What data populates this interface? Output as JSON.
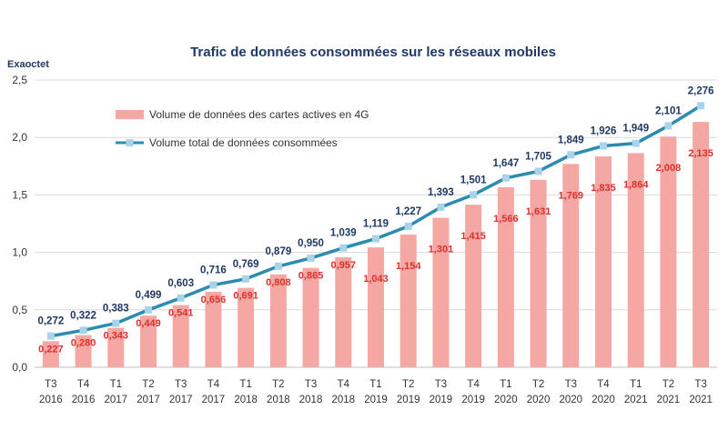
{
  "chart_data": {
    "type": "bar",
    "title": "Trafic de données consommées sur les réseaux mobiles",
    "ylabel": "Exaoctet",
    "ylim": [
      0,
      2.5
    ],
    "yticks": [
      "0,0",
      "0,5",
      "1,0",
      "1,5",
      "2,0",
      "2,5"
    ],
    "grid": true,
    "legend_position": "top-left",
    "categories": [
      [
        "T3",
        "2016"
      ],
      [
        "T4",
        "2016"
      ],
      [
        "T1",
        "2017"
      ],
      [
        "T2",
        "2017"
      ],
      [
        "T3",
        "2017"
      ],
      [
        "T4",
        "2017"
      ],
      [
        "T1",
        "2018"
      ],
      [
        "T2",
        "2018"
      ],
      [
        "T3",
        "2018"
      ],
      [
        "T4",
        "2018"
      ],
      [
        "T1",
        "2019"
      ],
      [
        "T2",
        "2019"
      ],
      [
        "T3",
        "2019"
      ],
      [
        "T4",
        "2019"
      ],
      [
        "T1",
        "2020"
      ],
      [
        "T2",
        "2020"
      ],
      [
        "T3",
        "2020"
      ],
      [
        "T4",
        "2020"
      ],
      [
        "T1",
        "2021"
      ],
      [
        "T2",
        "2021"
      ],
      [
        "T3",
        "2021"
      ]
    ],
    "series": [
      {
        "name": "Volume de données des cartes actives en 4G",
        "type": "bar",
        "color": "#f4a7a3",
        "label_color": "#d9302b",
        "values": [
          0.227,
          0.28,
          0.343,
          0.449,
          0.541,
          0.656,
          0.691,
          0.808,
          0.865,
          0.957,
          1.043,
          1.154,
          1.301,
          1.415,
          1.566,
          1.631,
          1.769,
          1.835,
          1.864,
          2.008,
          2.135
        ],
        "labels": [
          "0,227",
          "0,280",
          "0,343",
          "0,449",
          "0,541",
          "0,656",
          "0,691",
          "0,808",
          "0,865",
          "0,957",
          "1,043",
          "1,154",
          "1,301",
          "1,415",
          "1,566",
          "1,631",
          "1,769",
          "1,835",
          "1,864",
          "2,008",
          "2,135"
        ]
      },
      {
        "name": "Volume total de données consommées",
        "type": "line",
        "color": "#2e8bb0",
        "marker_color": "#a9d3e8",
        "label_color": "#1f3864",
        "values": [
          0.272,
          0.322,
          0.383,
          0.499,
          0.603,
          0.716,
          0.769,
          0.879,
          0.95,
          1.039,
          1.119,
          1.227,
          1.393,
          1.501,
          1.647,
          1.705,
          1.849,
          1.926,
          1.949,
          2.101,
          2.276
        ],
        "labels": [
          "0,272",
          "0,322",
          "0,383",
          "0,499",
          "0,603",
          "0,716",
          "0,769",
          "0,879",
          "0,950",
          "1,039",
          "1,119",
          "1,227",
          "1,393",
          "1,501",
          "1,647",
          "1,705",
          "1,849",
          "1,926",
          "1,949",
          "2,101",
          "2,276"
        ]
      }
    ],
    "colors": {
      "grid": "#d9d9d9",
      "axis": "#bfbfbf",
      "title": "#1f3864"
    }
  }
}
